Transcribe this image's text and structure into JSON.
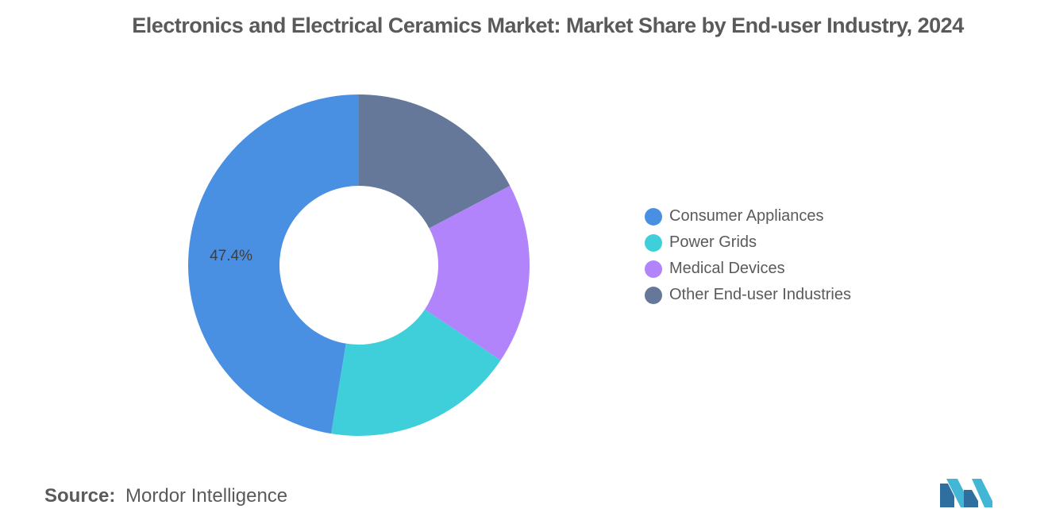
{
  "title": "Electronics and Electrical Ceramics Market: Market Share by End-user Industry, 2024",
  "source": {
    "label": "Source:",
    "value": "Mordor Intelligence"
  },
  "logo": "mordor-intelligence-logo",
  "chart_data": {
    "type": "pie",
    "variant": "donut",
    "title": "Electronics and Electrical Ceramics Market: Market Share by End-user Industry, 2024",
    "legend_position": "right",
    "data_labels": [
      {
        "series": "Consumer Appliances",
        "text": "47.4%"
      }
    ],
    "series": [
      {
        "name": "Consumer Appliances",
        "value": 47.4,
        "color": "#4a90e2"
      },
      {
        "name": "Power Grids",
        "value": 18.2,
        "color": "#3ecfda"
      },
      {
        "name": "Medical Devices",
        "value": 17.1,
        "color": "#b184fb"
      },
      {
        "name": "Other End-user Industries",
        "value": 17.3,
        "color": "#65789a"
      }
    ]
  }
}
